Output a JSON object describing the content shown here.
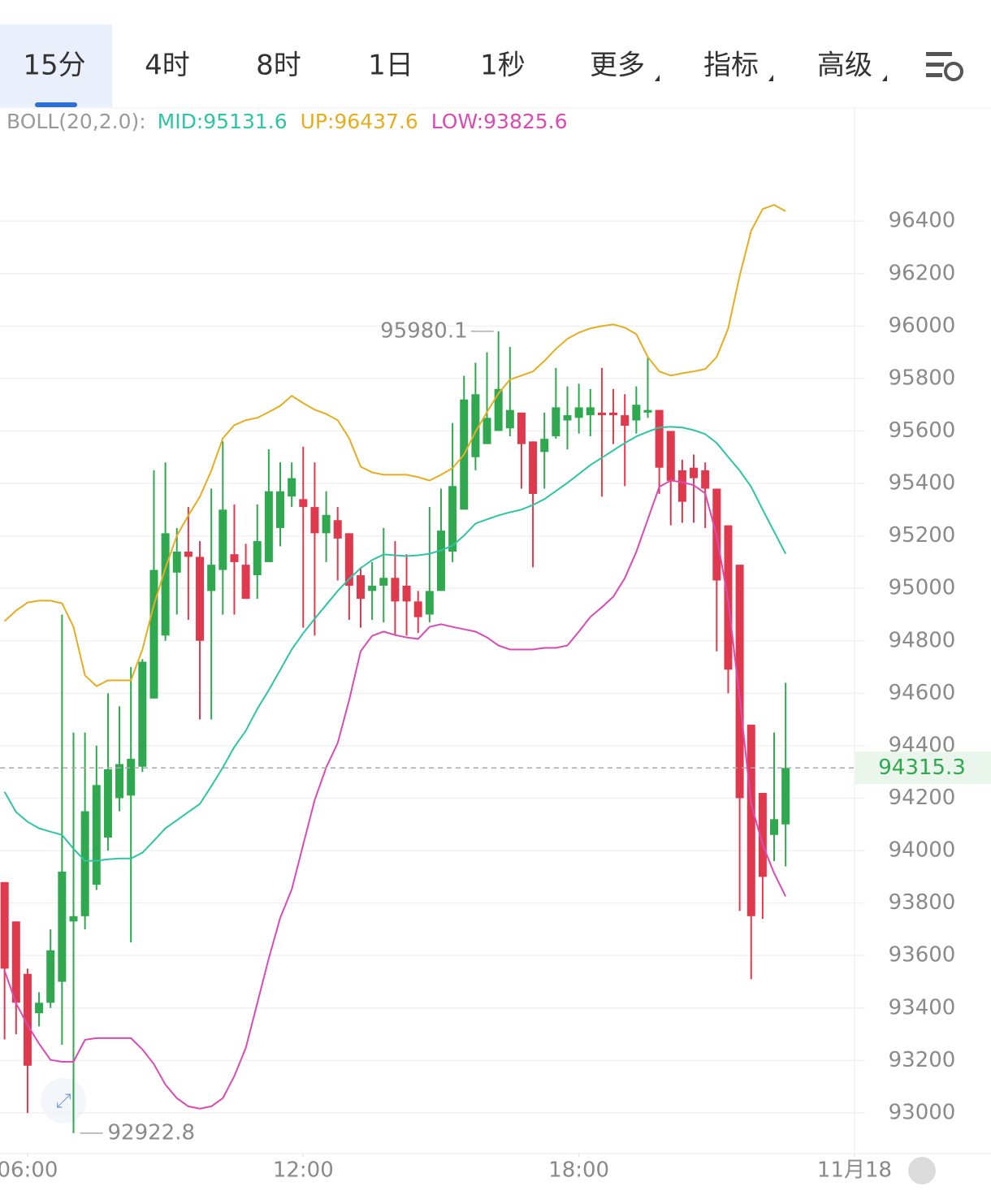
{
  "tabs": [
    "15分",
    "4时",
    "8时",
    "1日",
    "1秒",
    "更多",
    "指标",
    "高级"
  ],
  "selected_tab": 0,
  "chart_data": {
    "type": "candlestick",
    "indicator": "BOLL(20,2.0):",
    "up_color": "#2fa84f",
    "down_color": "#e0384c",
    "x": [
      5.5,
      5.75,
      6,
      6.25,
      6.5,
      6.75,
      7,
      7.25,
      7.5,
      7.75,
      8,
      8.25,
      8.5,
      8.75,
      9,
      9.25,
      9.5,
      9.75,
      10,
      10.25,
      10.5,
      10.75,
      11,
      11.25,
      11.5,
      11.75,
      12,
      12.25,
      12.5,
      12.75,
      13,
      13.25,
      13.5,
      13.75,
      14,
      14.25,
      14.5,
      14.75,
      15,
      15.25,
      15.5,
      15.75,
      16,
      16.25,
      16.5,
      16.75,
      17,
      17.25,
      17.5,
      17.75,
      18,
      18.25,
      18.5,
      18.75,
      19,
      19.25,
      19.5,
      19.75,
      20,
      20.25,
      20.5,
      20.75,
      21,
      21.25,
      21.5,
      21.75,
      22,
      22.25,
      22.5
    ],
    "open": [
      93880,
      93730,
      93530,
      93380,
      93420,
      93500,
      93730,
      93750,
      93870,
      94050,
      94200,
      94210,
      94320,
      94580,
      94820,
      95060,
      95140,
      95120,
      94990,
      95070,
      95130,
      95090,
      95050,
      95100,
      95230,
      95350,
      95340,
      95310,
      95210,
      95260,
      95210,
      95050,
      94990,
      95010,
      95040,
      95010,
      94950,
      94900,
      94990,
      95140,
      95300,
      95500,
      95550,
      95600,
      95610,
      95670,
      95560,
      95520,
      95580,
      95640,
      95650,
      95660,
      95670,
      95670,
      95660,
      95640,
      95670,
      95680,
      95600,
      95450,
      95460,
      95450,
      95380,
      95240,
      95090,
      94480,
      94220,
      94060,
      94100
    ],
    "high": [
      93880,
      93730,
      93550,
      93460,
      93700,
      94900,
      94450,
      94450,
      94400,
      94600,
      94550,
      94700,
      94730,
      95450,
      95480,
      95230,
      95310,
      95180,
      95380,
      95560,
      95320,
      95170,
      95320,
      95530,
      95480,
      95480,
      95540,
      95480,
      95370,
      95310,
      95210,
      95080,
      95100,
      95230,
      95180,
      95130,
      94990,
      95310,
      95380,
      95630,
      95810,
      95860,
      95900,
      95980.1,
      95920,
      95670,
      95560,
      95670,
      95840,
      95770,
      95780,
      95760,
      95840,
      95760,
      95740,
      95770,
      95880,
      95680,
      95600,
      95490,
      95510,
      95480,
      95380,
      95240,
      95090,
      94480,
      94220,
      94450,
      94640
    ],
    "low": [
      93280,
      93300,
      93000,
      93330,
      93400,
      93260,
      92922.8,
      93700,
      93850,
      94000,
      94150,
      93650,
      94300,
      94580,
      94800,
      94900,
      94880,
      94500,
      94500,
      94900,
      94900,
      94960,
      94960,
      95100,
      95160,
      95310,
      94850,
      94820,
      95100,
      95030,
      94880,
      94850,
      94880,
      94870,
      94820,
      94820,
      94830,
      94870,
      94990,
      95100,
      95300,
      95450,
      95550,
      95600,
      95580,
      95380,
      95080,
      95380,
      95570,
      95530,
      95590,
      95580,
      95350,
      95550,
      95390,
      95590,
      95650,
      95360,
      95240,
      95250,
      95250,
      95230,
      94760,
      94600,
      93770,
      93510,
      93740,
      93960,
      93940
    ],
    "close": [
      93550,
      93420,
      93180,
      93420,
      93620,
      93920,
      93750,
      94150,
      94250,
      94310,
      94330,
      94350,
      94720,
      95070,
      95210,
      95140,
      95120,
      94800,
      95090,
      95300,
      95100,
      94960,
      95180,
      95370,
      95370,
      95420,
      95310,
      95210,
      95280,
      95190,
      95010,
      94960,
      95010,
      95040,
      94950,
      94950,
      94890,
      94990,
      95220,
      95390,
      95720,
      95740,
      95650,
      95760,
      95680,
      95550,
      95360,
      95570,
      95690,
      95660,
      95690,
      95690,
      95660,
      95660,
      95620,
      95700,
      95680,
      95460,
      95410,
      95330,
      95420,
      95380,
      95030,
      94690,
      94200,
      93750,
      93900,
      94120,
      94315.3
    ],
    "series": [
      {
        "name": "MID:95131.6",
        "color": "#2ec4a4",
        "values": [
          94224,
          94147,
          94110,
          94085,
          94072,
          94060,
          94007,
          93961,
          93961,
          93967,
          93970,
          93970,
          93992,
          94038,
          94085,
          94116,
          94147,
          94178,
          94246,
          94317,
          94395,
          94457,
          94540,
          94612,
          94689,
          94767,
          94829,
          94884,
          94937,
          94990,
          95036,
          95077,
          95108,
          95129,
          95126,
          95123,
          95126,
          95132,
          95145,
          95163,
          95201,
          95247,
          95263,
          95278,
          95290,
          95300,
          95318,
          95340,
          95371,
          95402,
          95436,
          95470,
          95498,
          95526,
          95554,
          95579,
          95597,
          95613,
          95616,
          95613,
          95603,
          95588,
          95554,
          95501,
          95449,
          95387,
          95300,
          95216,
          95131.6
        ]
      },
      {
        "name": "UP:96437.6",
        "color": "#e6ad1e",
        "values": [
          94875,
          94915,
          94946,
          94953,
          94953,
          94943,
          94853,
          94668,
          94627,
          94649,
          94649,
          94649,
          94767,
          94937,
          95077,
          95201,
          95278,
          95349,
          95449,
          95572,
          95622,
          95641,
          95650,
          95672,
          95696,
          95734,
          95706,
          95681,
          95665,
          95641,
          95572,
          95464,
          95442,
          95433,
          95433,
          95433,
          95424,
          95411,
          95433,
          95458,
          95510,
          95597,
          95672,
          95743,
          95796,
          95811,
          95827,
          95867,
          95913,
          95951,
          95975,
          95991,
          96000,
          96006,
          95994,
          95969,
          95882,
          95827,
          95811,
          95820,
          95827,
          95836,
          95882,
          95991,
          96192,
          96363,
          96446,
          96462,
          96437.6
        ]
      },
      {
        "name": "LOW:93825.6",
        "color": "#d94bb3",
        "values": [
          93542,
          93418,
          93335,
          93264,
          93202,
          93195,
          93195,
          93279,
          93285,
          93285,
          93285,
          93285,
          93242,
          93186,
          93108,
          93056,
          93025,
          93016,
          93025,
          93056,
          93140,
          93248,
          93418,
          93589,
          93744,
          93852,
          94023,
          94193,
          94317,
          94410,
          94574,
          94760,
          94819,
          94835,
          94822,
          94813,
          94807,
          94853,
          94863,
          94853,
          94844,
          94835,
          94813,
          94782,
          94767,
          94767,
          94767,
          94773,
          94773,
          94782,
          94835,
          94891,
          94928,
          94968,
          95039,
          95139,
          95263,
          95387,
          95411,
          95405,
          95393,
          95362,
          95201,
          94953,
          94581,
          94178,
          94023,
          93914,
          93825.6
        ]
      }
    ],
    "xlim": [
      5.4,
      24
    ],
    "xticks": [
      {
        "value": 6,
        "label": "06:00"
      },
      {
        "value": 12,
        "label": "12:00"
      },
      {
        "value": 18,
        "label": "18:00"
      },
      {
        "value": 24,
        "label": "11月18"
      }
    ],
    "ylim": [
      92845,
      96828
    ],
    "yticks": [
      93000,
      93200,
      93400,
      93600,
      93800,
      94000,
      94200,
      94400,
      94600,
      94800,
      95000,
      95200,
      95400,
      95600,
      95800,
      96000,
      96200,
      96400
    ],
    "grid": true
  }
}
